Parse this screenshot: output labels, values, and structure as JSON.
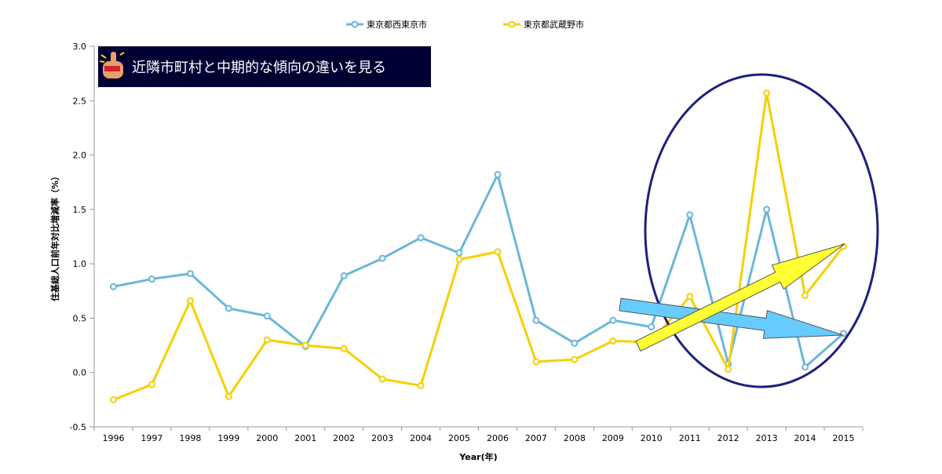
{
  "chart_data": {
    "type": "line",
    "x": [
      1996,
      1997,
      1998,
      1999,
      2000,
      2001,
      2002,
      2003,
      2004,
      2005,
      2006,
      2007,
      2008,
      2009,
      2010,
      2011,
      2012,
      2013,
      2014,
      2015
    ],
    "series": [
      {
        "name": "東京都西東京市",
        "color": "#6bb7d9",
        "values": [
          0.79,
          0.86,
          0.91,
          0.59,
          0.52,
          0.24,
          0.89,
          1.05,
          1.24,
          1.1,
          1.82,
          0.48,
          0.27,
          0.48,
          0.42,
          1.45,
          0.08,
          1.5,
          0.05,
          0.36
        ]
      },
      {
        "name": "東京都武蔵野市",
        "color": "#f5d000",
        "values": [
          -0.25,
          -0.11,
          0.66,
          -0.22,
          0.3,
          0.25,
          0.22,
          -0.06,
          -0.12,
          1.04,
          1.11,
          0.1,
          0.12,
          0.29,
          0.28,
          0.7,
          0.03,
          2.57,
          0.71,
          1.16
        ]
      }
    ],
    "xlabel": "Year(年)",
    "ylabel": "住基総人口前年対比増減率（%）",
    "ylim": [
      -0.5,
      3.0
    ],
    "yticks": [
      "3.0",
      "2.5",
      "2.0",
      "1.5",
      "1.0",
      "0.5",
      "0.0",
      "-0.5"
    ],
    "legend_position": "top-center",
    "grid": false
  },
  "banner": {
    "title": "近隣市町村と中期的な傾向の違いを見る",
    "background": "#000033"
  },
  "annotations": {
    "ellipse_color": "#1f1f7a",
    "down_arrow_color": "#66ccff",
    "up_arrow_color": "#ffff33"
  }
}
